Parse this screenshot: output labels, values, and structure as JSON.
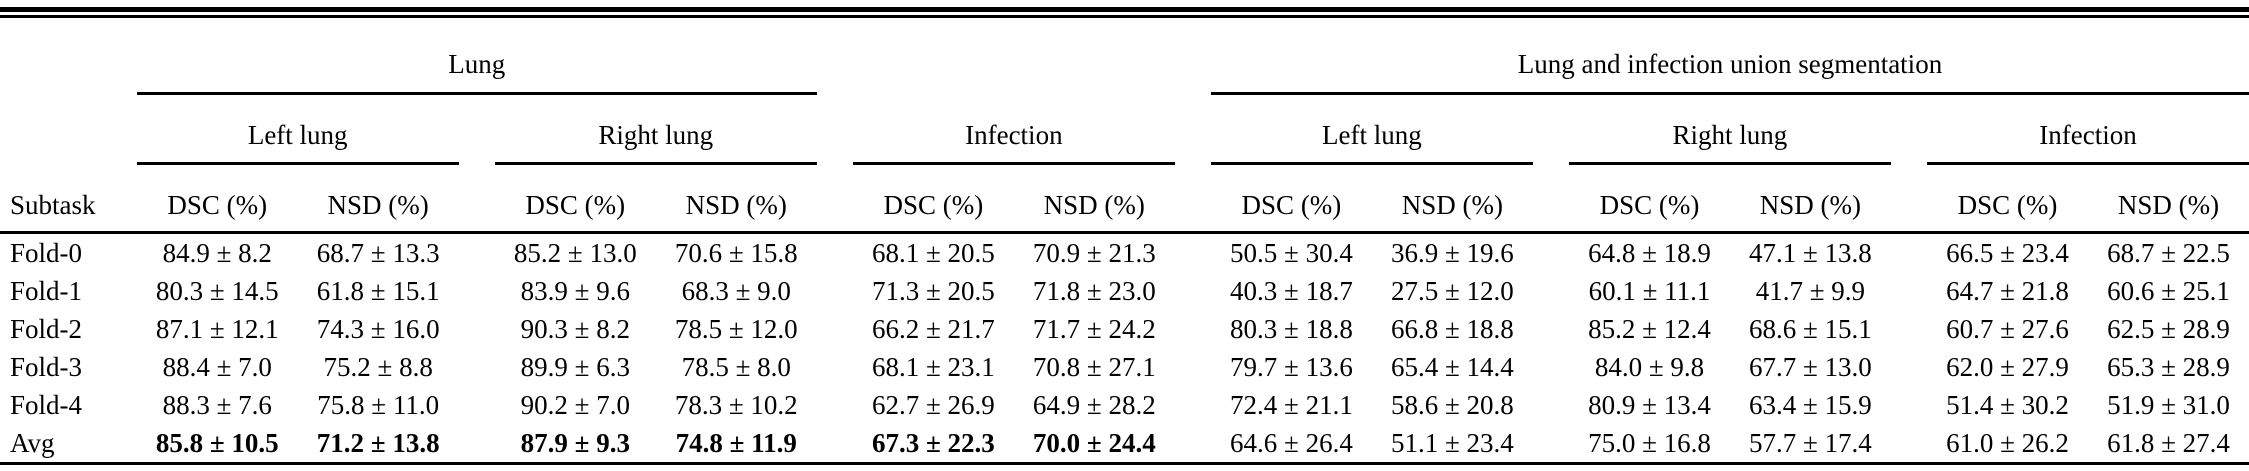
{
  "table": {
    "corner_label": "Subtask",
    "group_headers": [
      {
        "label": "Lung"
      },
      {
        "label": ""
      },
      {
        "label": "Lung and infection union segmentation"
      }
    ],
    "subgroup_headers": [
      "Left lung",
      "Right lung",
      "Infection",
      "Left lung",
      "Right lung",
      "Infection"
    ],
    "metric_headers": [
      "DSC (%)",
      "NSD (%)",
      "DSC (%)",
      "NSD (%)",
      "DSC (%)",
      "NSD (%)",
      "DSC (%)",
      "NSD (%)",
      "DSC (%)",
      "NSD (%)",
      "DSC (%)",
      "NSD (%)"
    ],
    "rows": [
      {
        "label": "Fold-0",
        "values": [
          "84.9 ± 8.2",
          "68.7 ± 13.3",
          "85.2 ± 13.0",
          "70.6 ± 15.8",
          "68.1 ± 20.5",
          "70.9 ± 21.3",
          "50.5 ± 30.4",
          "36.9 ± 19.6",
          "64.8 ± 18.9",
          "47.1 ± 13.8",
          "66.5 ± 23.4",
          "68.7 ± 22.5"
        ],
        "bold_mask": [
          false,
          false,
          false,
          false,
          false,
          false,
          false,
          false,
          false,
          false,
          false,
          false
        ]
      },
      {
        "label": "Fold-1",
        "values": [
          "80.3 ± 14.5",
          "61.8 ± 15.1",
          "83.9 ± 9.6",
          "68.3 ± 9.0",
          "71.3 ± 20.5",
          "71.8 ± 23.0",
          "40.3 ± 18.7",
          "27.5 ± 12.0",
          "60.1 ± 11.1",
          "41.7 ± 9.9",
          "64.7 ± 21.8",
          "60.6 ± 25.1"
        ],
        "bold_mask": [
          false,
          false,
          false,
          false,
          false,
          false,
          false,
          false,
          false,
          false,
          false,
          false
        ]
      },
      {
        "label": "Fold-2",
        "values": [
          "87.1 ± 12.1",
          "74.3 ± 16.0",
          "90.3 ± 8.2",
          "78.5 ± 12.0",
          "66.2 ± 21.7",
          "71.7 ± 24.2",
          "80.3 ± 18.8",
          "66.8 ± 18.8",
          "85.2 ± 12.4",
          "68.6 ± 15.1",
          "60.7 ± 27.6",
          "62.5 ± 28.9"
        ],
        "bold_mask": [
          false,
          false,
          false,
          false,
          false,
          false,
          false,
          false,
          false,
          false,
          false,
          false
        ]
      },
      {
        "label": "Fold-3",
        "values": [
          "88.4 ± 7.0",
          "75.2 ± 8.8",
          "89.9 ± 6.3",
          "78.5 ± 8.0",
          "68.1 ± 23.1",
          "70.8 ± 27.1",
          "79.7 ± 13.6",
          "65.4 ± 14.4",
          "84.0 ± 9.8",
          "67.7 ± 13.0",
          "62.0 ± 27.9",
          "65.3 ± 28.9"
        ],
        "bold_mask": [
          false,
          false,
          false,
          false,
          false,
          false,
          false,
          false,
          false,
          false,
          false,
          false
        ]
      },
      {
        "label": "Fold-4",
        "values": [
          "88.3 ± 7.6",
          "75.8 ± 11.0",
          "90.2 ± 7.0",
          "78.3 ± 10.2",
          "62.7 ± 26.9",
          "64.9 ± 28.2",
          "72.4 ± 21.1",
          "58.6 ± 20.8",
          "80.9 ± 13.4",
          "63.4 ± 15.9",
          "51.4 ± 30.2",
          "51.9 ± 31.0"
        ],
        "bold_mask": [
          false,
          false,
          false,
          false,
          false,
          false,
          false,
          false,
          false,
          false,
          false,
          false
        ]
      },
      {
        "label": "Avg",
        "values": [
          "85.8 ± 10.5",
          "71.2 ± 13.8",
          "87.9 ± 9.3",
          "74.8 ± 11.9",
          "67.3 ± 22.3",
          "70.0 ± 24.4",
          "64.6 ± 26.4",
          "51.1 ± 23.4",
          "75.0 ± 16.8",
          "57.7 ± 17.4",
          "61.0 ± 26.2",
          "61.8 ± 27.4"
        ],
        "bold_mask": [
          true,
          true,
          true,
          true,
          true,
          true,
          false,
          false,
          false,
          false,
          false,
          false
        ]
      }
    ]
  },
  "colors": {
    "text": "#000000",
    "background": "#ffffff",
    "rule": "#000000"
  }
}
